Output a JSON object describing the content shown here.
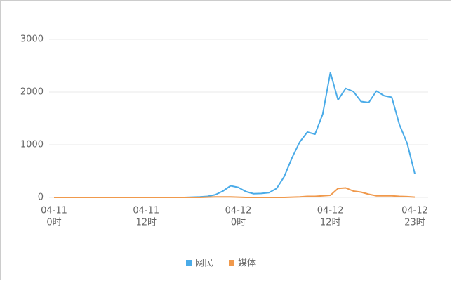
{
  "chart_data": {
    "type": "line",
    "categories": [
      [
        "04-11",
        "0时"
      ],
      null,
      null,
      null,
      null,
      null,
      null,
      null,
      null,
      null,
      null,
      null,
      [
        "04-11",
        "12时"
      ],
      null,
      null,
      null,
      null,
      null,
      null,
      null,
      null,
      null,
      null,
      null,
      [
        "04-12",
        "0时"
      ],
      null,
      null,
      null,
      null,
      null,
      null,
      null,
      null,
      null,
      null,
      null,
      [
        "04-12",
        "12时"
      ],
      null,
      null,
      null,
      null,
      null,
      null,
      null,
      null,
      null,
      null,
      [
        "04-12",
        "23时"
      ]
    ],
    "series": [
      {
        "name": "网民",
        "color": "#4aabe8",
        "values": [
          0,
          0,
          0,
          0,
          0,
          0,
          0,
          0,
          0,
          0,
          0,
          0,
          0,
          0,
          0,
          0,
          0,
          0,
          5,
          10,
          20,
          50,
          120,
          220,
          190,
          110,
          70,
          75,
          90,
          170,
          400,
          750,
          1050,
          1240,
          1200,
          1580,
          2370,
          1850,
          2070,
          2010,
          1820,
          1800,
          2020,
          1930,
          1900,
          1380,
          1030,
          450
        ]
      },
      {
        "name": "媒体",
        "color": "#f0994c",
        "values": [
          0,
          0,
          0,
          0,
          0,
          0,
          0,
          0,
          0,
          0,
          0,
          0,
          0,
          0,
          0,
          0,
          0,
          0,
          0,
          0,
          5,
          10,
          10,
          10,
          5,
          0,
          0,
          0,
          0,
          0,
          0,
          5,
          10,
          20,
          20,
          30,
          40,
          170,
          180,
          120,
          100,
          60,
          30,
          30,
          30,
          20,
          15,
          5
        ]
      }
    ],
    "ylim": [
      0,
      3000
    ],
    "yticks": [
      0,
      1000,
      2000,
      3000
    ],
    "grid": true
  }
}
